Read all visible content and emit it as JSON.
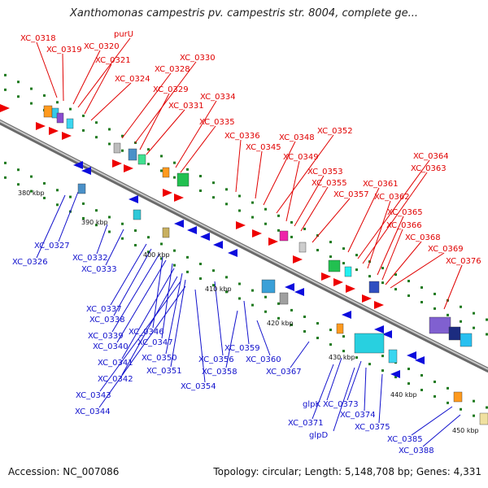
{
  "title": "Xanthomonas campestris pv. campestris str. 8004, complete ge...",
  "footer": {
    "accession": "Accession: NC_007086",
    "summary": "Topology: circular; Length: 5,148,708 bp; Genes: 4,331"
  },
  "colors": {
    "forward_label": "#e00000",
    "reverse_label": "#1010cc",
    "backbone": "#9a9a9a",
    "tick": "#1e7a1e"
  },
  "kbp_labels": [
    "380 kbp",
    "390 kbp",
    "400 kbp",
    "410 kbp",
    "420 kbp",
    "430 kbp",
    "440 kbp",
    "450 kbp"
  ],
  "forward_labels": [
    "XC_0318",
    "XC_0319",
    "XC_0320",
    "purU",
    "XC_0321",
    "XC_0324",
    "XC_0328",
    "XC_0330",
    "XC_0329",
    "XC_0331",
    "XC_0334",
    "XC_0335",
    "XC_0336",
    "XC_0345",
    "XC_0348",
    "XC_0352",
    "XC_0349",
    "XC_0353",
    "XC_0355",
    "XC_0357",
    "XC_0361",
    "XC_0364",
    "XC_0363",
    "XC_0362",
    "XC_0365",
    "XC_0366",
    "XC_0368",
    "XC_0369",
    "XC_0376"
  ],
  "reverse_labels": [
    "XC_0327",
    "XC_0326",
    "XC_0332",
    "XC_0333",
    "XC_0337",
    "XC_0338",
    "XC_0339",
    "XC_0346",
    "XC_0340",
    "XC_0347",
    "XC_0341",
    "XC_0350",
    "XC_0356",
    "XC_0359",
    "XC_0342",
    "XC_0351",
    "XC_0358",
    "XC_0360",
    "XC_0343",
    "XC_0354",
    "XC_0367",
    "XC_0344",
    "glpK",
    "XC_0373",
    "XC_0371",
    "XC_0374",
    "glpD",
    "XC_0375",
    "XC_0385",
    "XC_0388"
  ]
}
